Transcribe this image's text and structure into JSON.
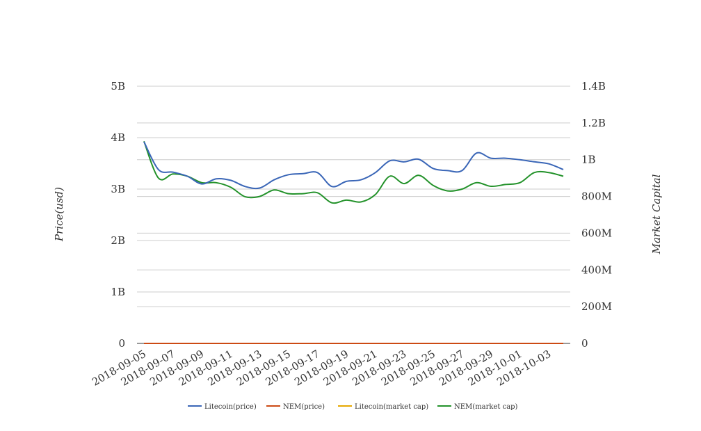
{
  "chart_data": {
    "type": "line",
    "title": "",
    "y_left": {
      "label": "Price(usd)",
      "range": [
        0,
        5000000000
      ],
      "ticks": [
        {
          "value": 0,
          "label": "0"
        },
        {
          "value": 1000000000,
          "label": "1B"
        },
        {
          "value": 2000000000,
          "label": "2B"
        },
        {
          "value": 3000000000,
          "label": "3B"
        },
        {
          "value": 4000000000,
          "label": "4B"
        },
        {
          "value": 5000000000,
          "label": "5B"
        }
      ]
    },
    "y_right": {
      "label": "Market Capital",
      "range": [
        0,
        1400000000
      ],
      "ticks": [
        {
          "value": 0,
          "label": "0"
        },
        {
          "value": 200000000,
          "label": "200M"
        },
        {
          "value": 400000000,
          "label": "400M"
        },
        {
          "value": 600000000,
          "label": "600M"
        },
        {
          "value": 800000000,
          "label": "800M"
        },
        {
          "value": 1000000000,
          "label": "1B"
        },
        {
          "value": 1200000000,
          "label": "1.2B"
        },
        {
          "value": 1400000000,
          "label": "1.4B"
        }
      ]
    },
    "x_tick_labels": [
      "2018-09-05",
      "2018-09-07",
      "2018-09-09",
      "2018-09-11",
      "2018-09-13",
      "2018-09-15",
      "2018-09-17",
      "2018-09-19",
      "2018-09-21",
      "2018-09-23",
      "2018-09-25",
      "2018-09-27",
      "2018-09-29",
      "2018-10-01",
      "2018-10-03"
    ],
    "x": [
      "2018-09-05",
      "2018-09-06",
      "2018-09-07",
      "2018-09-08",
      "2018-09-09",
      "2018-09-10",
      "2018-09-11",
      "2018-09-12",
      "2018-09-13",
      "2018-09-14",
      "2018-09-15",
      "2018-09-16",
      "2018-09-17",
      "2018-09-18",
      "2018-09-19",
      "2018-09-20",
      "2018-09-21",
      "2018-09-22",
      "2018-09-23",
      "2018-09-24",
      "2018-09-25",
      "2018-09-26",
      "2018-09-27",
      "2018-09-28",
      "2018-09-29",
      "2018-09-30",
      "2018-10-01",
      "2018-10-02",
      "2018-10-03",
      "2018-10-04"
    ],
    "series": [
      {
        "name": "Litecoin(price)",
        "axis": "left",
        "color": "#3a66b7",
        "values": [
          3920000000.0,
          3380000000.0,
          3330000000.0,
          3250000000.0,
          3100000000.0,
          3200000000.0,
          3170000000.0,
          3050000000.0,
          3020000000.0,
          3180000000.0,
          3280000000.0,
          3300000000.0,
          3320000000.0,
          3050000000.0,
          3150000000.0,
          3180000000.0,
          3320000000.0,
          3550000000.0,
          3530000000.0,
          3580000000.0,
          3400000000.0,
          3360000000.0,
          3360000000.0,
          3700000000.0,
          3600000000.0,
          3600000000.0,
          3570000000.0,
          3530000000.0,
          3490000000.0,
          3380000000.0
        ]
      },
      {
        "name": "NEM(price)",
        "axis": "left",
        "color": "#cc4a14",
        "values": [
          0.11,
          0.1,
          0.1,
          0.1,
          0.09,
          0.09,
          0.09,
          0.09,
          0.09,
          0.09,
          0.09,
          0.09,
          0.09,
          0.08,
          0.08,
          0.08,
          0.09,
          0.1,
          0.09,
          0.1,
          0.09,
          0.09,
          0.09,
          0.09,
          0.09,
          0.09,
          0.09,
          0.1,
          0.1,
          0.09
        ]
      },
      {
        "name": "Litecoin(market cap)",
        "axis": "right",
        "color": "#e6a800",
        "values": [
          65,
          58,
          58,
          57,
          55,
          56,
          56,
          54,
          53,
          55,
          57,
          57,
          57,
          53,
          55,
          55,
          57,
          61,
          61,
          62,
          59,
          58,
          58,
          63,
          62,
          62,
          62,
          61,
          60,
          58
        ]
      },
      {
        "name": "NEM(market cap)",
        "axis": "right",
        "color": "#23922a",
        "values": [
          1100000000.0,
          900000000.0,
          922000000.0,
          910000000.0,
          875000000.0,
          875000000.0,
          850000000.0,
          798000000.0,
          800000000.0,
          835000000.0,
          815000000.0,
          815000000.0,
          820000000.0,
          765000000.0,
          780000000.0,
          770000000.0,
          810000000.0,
          910000000.0,
          870000000.0,
          915000000.0,
          860000000.0,
          830000000.0,
          840000000.0,
          875000000.0,
          855000000.0,
          865000000.0,
          875000000.0,
          930000000.0,
          930000000.0,
          910000000.0
        ]
      }
    ],
    "grid": true,
    "legend_position": "bottom-center"
  }
}
